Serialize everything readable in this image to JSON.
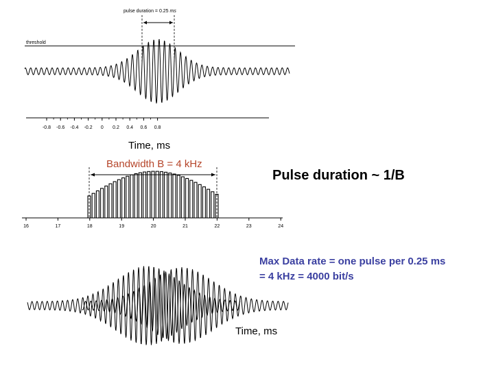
{
  "fig1": {
    "pulse_label": "pulse duration = 0.25",
    "pulse_unit": "ms",
    "threshold_label": "threshold",
    "ticks": [
      "-0.8",
      "-0.6",
      "-0.4",
      "-0.2",
      "0",
      "0.2",
      "0.4",
      "0.6",
      "0.8"
    ],
    "xlabel": "Time, ms"
  },
  "fig2": {
    "bandwidth_label": "Bandwidth B = 4 kHz",
    "ticks": [
      "16",
      "17",
      "18",
      "19",
      "20",
      "21",
      "22",
      "23",
      "24"
    ]
  },
  "pulse_relation": "Pulse duration ~ 1/B",
  "max_rate": {
    "line1": "Max Data rate = one pulse per 0.25 ms",
    "line2": "= 4 kHz = 4000 bit/s"
  },
  "fig3": {
    "xlabel": "Time, ms"
  },
  "colors": {
    "bandwidth": "#b5452a",
    "rate": "#3a3fa0"
  }
}
